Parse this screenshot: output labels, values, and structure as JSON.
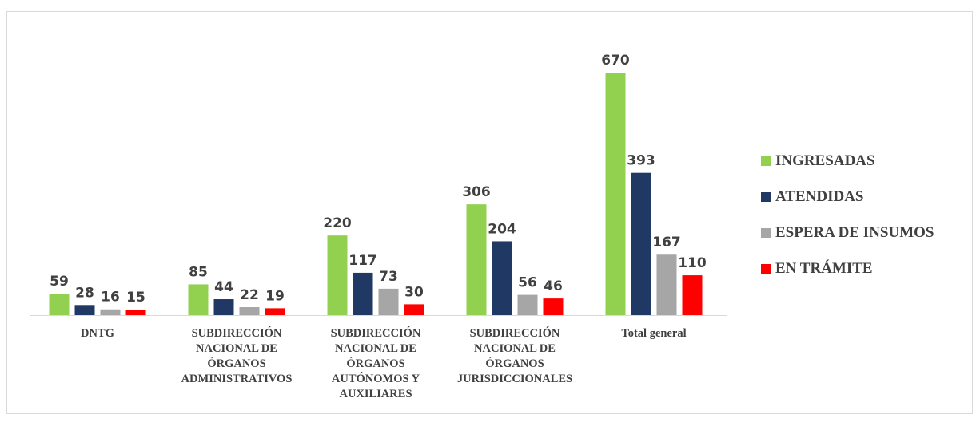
{
  "chart_data": {
    "type": "bar",
    "categories": [
      "DNTG",
      "SUBDIRECCIÓN NACIONAL DE ÓRGANOS ADMINISTRATIVOS",
      "SUBDIRECCIÓN NACIONAL DE ÓRGANOS AUTÓNOMOS Y AUXILIARES",
      "SUBDIRECCIÓN NACIONAL DE ÓRGANOS JURISDICCIONALES",
      "Total general"
    ],
    "series": [
      {
        "name": "INGRESADAS",
        "color": "#92d050",
        "values": [
          59,
          85,
          220,
          306,
          670
        ]
      },
      {
        "name": "ATENDIDAS",
        "color": "#1f3864",
        "values": [
          28,
          44,
          117,
          204,
          393
        ]
      },
      {
        "name": "ESPERA DE INSUMOS",
        "color": "#a6a6a6",
        "values": [
          16,
          22,
          73,
          56,
          167
        ]
      },
      {
        "name": "EN TRÁMITE",
        "color": "#ff0000",
        "values": [
          15,
          19,
          30,
          46,
          110
        ]
      }
    ],
    "legend": "right"
  }
}
